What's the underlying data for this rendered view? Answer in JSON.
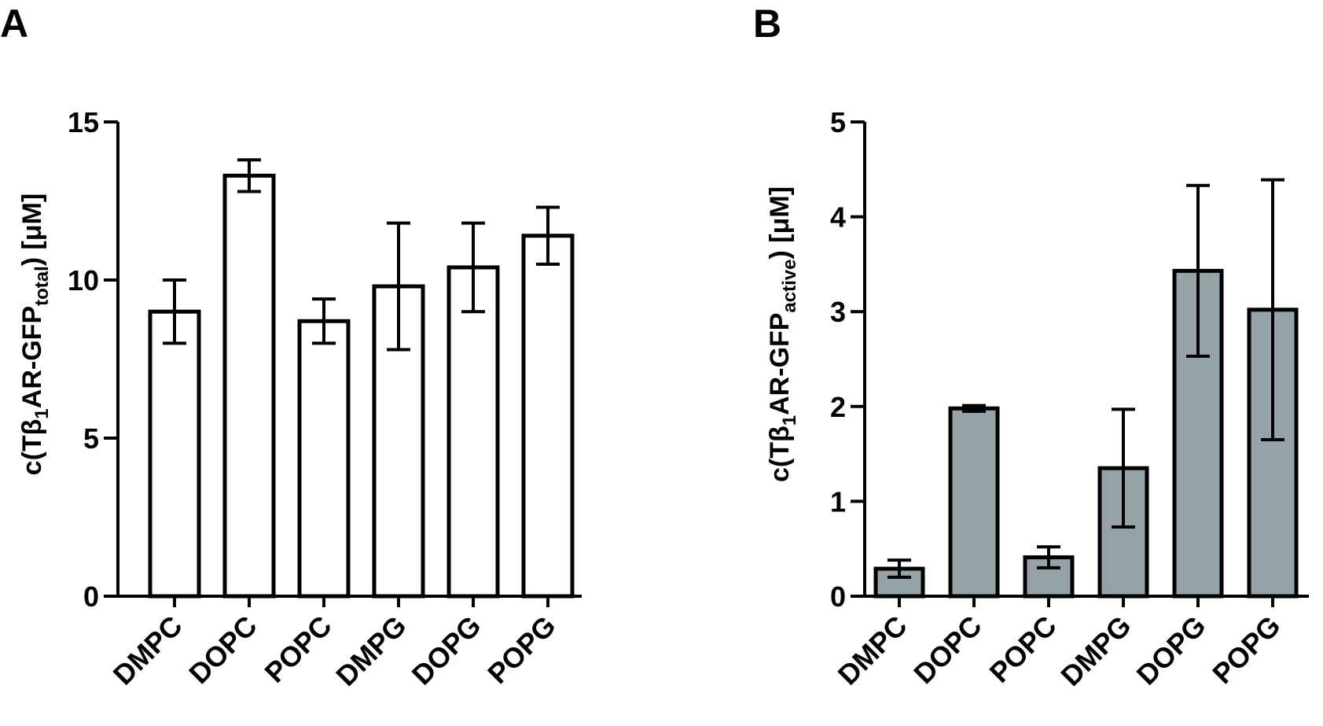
{
  "chart_data": [
    {
      "type": "bar",
      "panel_label": "A",
      "categories": [
        "DMPC",
        "DOPC",
        "POPC",
        "DMPG",
        "DOPG",
        "POPG"
      ],
      "values": [
        9.0,
        13.3,
        8.7,
        9.8,
        10.4,
        11.4
      ],
      "errors": [
        1.0,
        0.5,
        0.7,
        2.0,
        1.4,
        0.9
      ],
      "ylim": [
        0,
        15
      ],
      "yticks": [
        0,
        5,
        10,
        15
      ],
      "ylabel": {
        "pre": "c(T",
        "beta": "β",
        "beta_sub": "1",
        "mid": "AR-GFP",
        "sub": "total",
        "post": ") [μM]"
      },
      "xlabel": "",
      "bar_fill": "#ffffff",
      "bar_stroke": "#000000"
    },
    {
      "type": "bar",
      "panel_label": "B",
      "categories": [
        "DMPC",
        "DOPC",
        "POPC",
        "DMPG",
        "DOPG",
        "POPG"
      ],
      "values": [
        0.29,
        1.98,
        0.41,
        1.35,
        3.43,
        3.02
      ],
      "errors": [
        0.09,
        0.03,
        0.11,
        0.62,
        0.9,
        1.37
      ],
      "ylim": [
        0,
        5
      ],
      "yticks": [
        0,
        1,
        2,
        3,
        4,
        5
      ],
      "ylabel": {
        "pre": "c(T",
        "beta": "β",
        "beta_sub": "1",
        "mid": "AR-GFP",
        "sub": "active",
        "post": ") [μM]"
      },
      "xlabel": "",
      "bar_fill": "#95a2a7",
      "bar_stroke": "#000000"
    }
  ]
}
